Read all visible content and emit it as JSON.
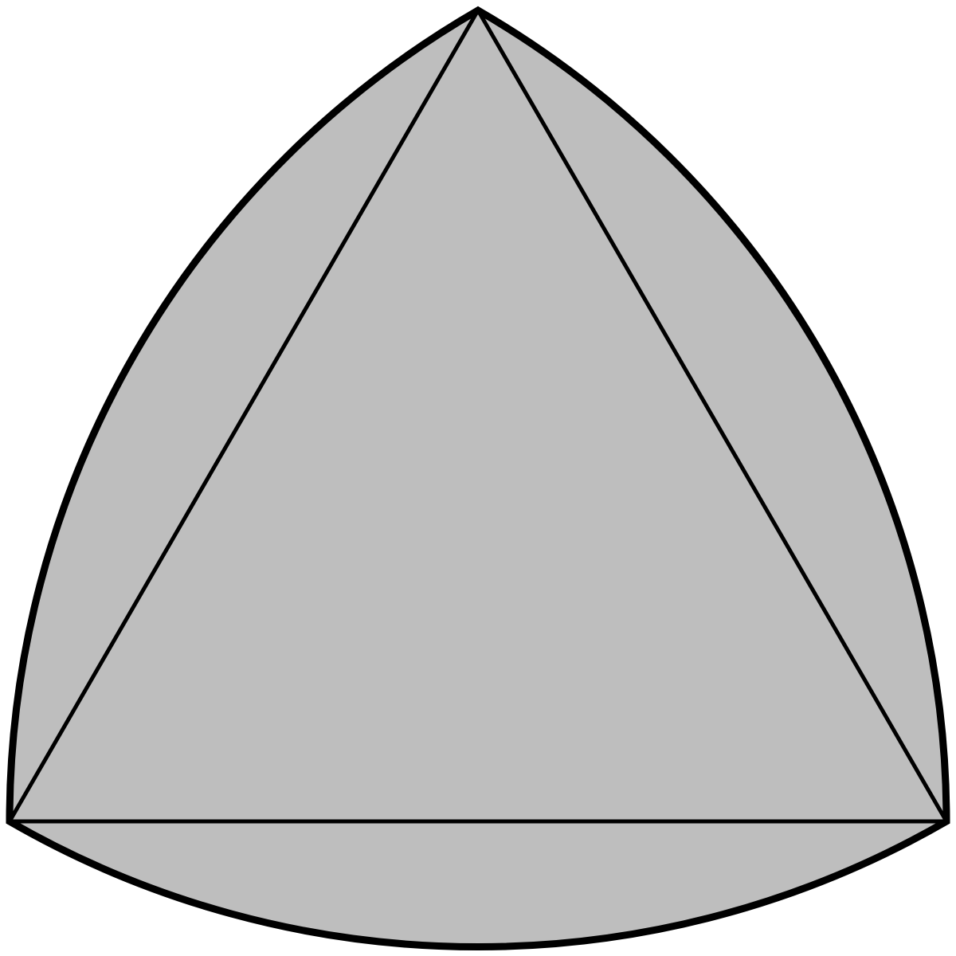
{
  "diagram": {
    "shape": "reuleaux-triangle",
    "inscribed_shape": "equilateral-triangle",
    "colors": {
      "fill": "#bebebe",
      "stroke": "#000000",
      "background": "#ffffff"
    }
  }
}
